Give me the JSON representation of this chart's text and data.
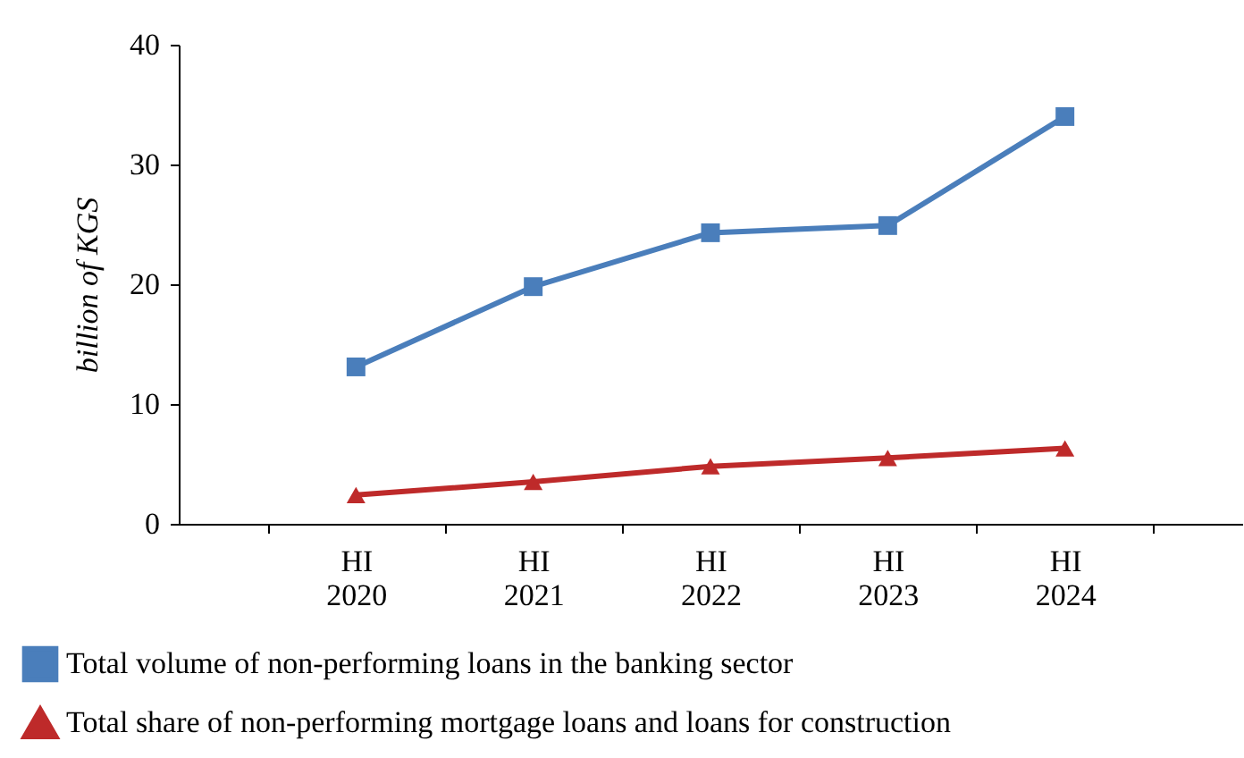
{
  "chart_data": {
    "type": "line",
    "ylabel": "billion of KGS",
    "categories": [
      "HI\n2020",
      "HI\n2021",
      "HI\n2022",
      "HI\n2023",
      "HI\n2024"
    ],
    "series": [
      {
        "name": "Total volume of non-performing loans in the banking sector",
        "color": "#4a7ebb",
        "marker": "square",
        "values": [
          13.1,
          19.8,
          24.3,
          24.9,
          34.0
        ]
      },
      {
        "name": "Total share of non-performing mortgage loans and loans for construction",
        "color": "#be2a2a",
        "marker": "triangle",
        "values": [
          2.4,
          3.5,
          4.8,
          5.5,
          6.3
        ]
      }
    ],
    "ylim": [
      0,
      40
    ],
    "yticks": [
      0,
      10,
      20,
      30,
      40
    ],
    "grid": false,
    "legend": "bottom"
  }
}
